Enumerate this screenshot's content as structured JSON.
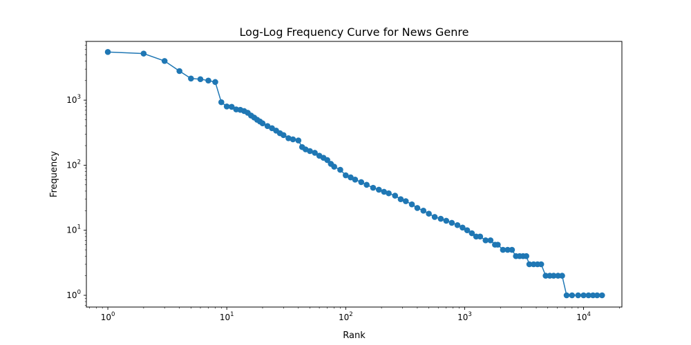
{
  "chart_data": {
    "type": "line",
    "title": "Log-Log Frequency Curve for News Genre",
    "xlabel": "Rank",
    "ylabel": "Frequency",
    "xscale": "log",
    "yscale": "log",
    "xlim": [
      0.66,
      21000
    ],
    "ylim": [
      0.66,
      8000
    ],
    "grid": false,
    "series_color": "#1f77b4",
    "x_ticks": [
      {
        "base": "10",
        "exp": "0",
        "value": 1
      },
      {
        "base": "10",
        "exp": "1",
        "value": 10
      },
      {
        "base": "10",
        "exp": "2",
        "value": 100
      },
      {
        "base": "10",
        "exp": "3",
        "value": 1000
      },
      {
        "base": "10",
        "exp": "4",
        "value": 10000
      }
    ],
    "y_ticks": [
      {
        "base": "10",
        "exp": "0",
        "value": 1
      },
      {
        "base": "10",
        "exp": "1",
        "value": 10
      },
      {
        "base": "10",
        "exp": "2",
        "value": 100
      },
      {
        "base": "10",
        "exp": "3",
        "value": 1000
      }
    ],
    "series": [
      {
        "x": [
          1,
          2,
          3,
          4,
          5,
          6,
          7,
          8,
          9,
          10,
          11,
          12,
          13,
          14,
          15,
          16,
          17,
          18,
          19,
          20,
          22,
          24,
          26,
          28,
          30,
          33,
          36,
          40,
          43,
          46,
          50,
          55,
          60,
          65,
          70,
          75,
          80,
          90,
          100,
          110,
          120,
          135,
          150,
          170,
          190,
          210,
          230,
          260,
          290,
          320,
          360,
          400,
          450,
          500,
          560,
          630,
          700,
          780,
          870,
          960,
          1050,
          1150,
          1250,
          1350,
          1500,
          1650,
          1800,
          1900,
          2100,
          2300,
          2500,
          2700,
          2900,
          3100,
          3300,
          3500,
          3800,
          4100,
          4400,
          4800,
          5200,
          5600,
          6100,
          6600,
          7200,
          8000,
          9000,
          10000,
          11000,
          12000,
          13000,
          14300
        ],
        "y": [
          5500,
          5200,
          4000,
          2800,
          2150,
          2100,
          2000,
          1900,
          930,
          800,
          790,
          720,
          710,
          680,
          640,
          580,
          540,
          500,
          470,
          440,
          400,
          370,
          340,
          310,
          290,
          260,
          250,
          240,
          190,
          175,
          165,
          155,
          140,
          130,
          120,
          105,
          95,
          85,
          70,
          65,
          60,
          55,
          50,
          45,
          42,
          39,
          37,
          34,
          30,
          28,
          25,
          22,
          20,
          18,
          16,
          15,
          14,
          13,
          12,
          11,
          10,
          9,
          8,
          8,
          7,
          7,
          6,
          6,
          5,
          5,
          5,
          4,
          4,
          4,
          4,
          3,
          3,
          3,
          3,
          2,
          2,
          2,
          2,
          2,
          1,
          1,
          1,
          1,
          1,
          1,
          1,
          1
        ]
      }
    ]
  }
}
